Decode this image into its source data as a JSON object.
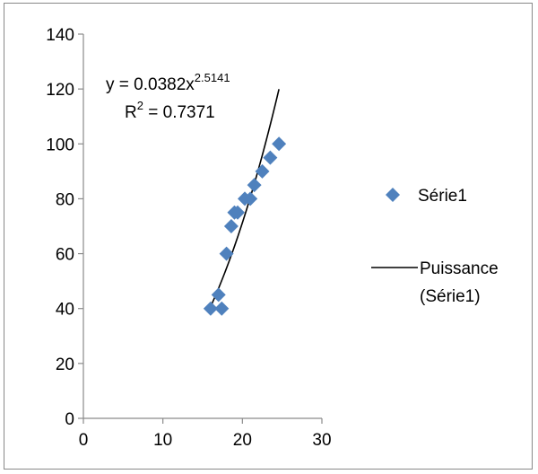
{
  "chart_data": {
    "type": "scatter",
    "title": "",
    "xlabel": "",
    "ylabel": "",
    "xlim": [
      0,
      30
    ],
    "ylim": [
      0,
      140
    ],
    "x_ticks": [
      "0",
      "10",
      "20",
      "30"
    ],
    "y_ticks": [
      "0",
      "20",
      "40",
      "60",
      "80",
      "100",
      "120",
      "140"
    ],
    "grid": false,
    "legend_position": "right",
    "series": [
      {
        "name": "Série1",
        "marker": "diamond",
        "color": "#4f81bd",
        "points": [
          {
            "x": 16.0,
            "y": 40
          },
          {
            "x": 17.4,
            "y": 40
          },
          {
            "x": 17.0,
            "y": 45
          },
          {
            "x": 18.0,
            "y": 60
          },
          {
            "x": 18.6,
            "y": 70
          },
          {
            "x": 19.0,
            "y": 75
          },
          {
            "x": 19.4,
            "y": 75
          },
          {
            "x": 20.3,
            "y": 80
          },
          {
            "x": 21.0,
            "y": 80
          },
          {
            "x": 21.5,
            "y": 85
          },
          {
            "x": 22.5,
            "y": 90
          },
          {
            "x": 23.5,
            "y": 95
          },
          {
            "x": 24.6,
            "y": 100
          }
        ]
      }
    ],
    "trendline": {
      "name": "Puissance (Série1)",
      "legend_lines": [
        "Puissance",
        "(Série1)"
      ],
      "type": "power",
      "coefficient": 0.0382,
      "exponent": 2.5141,
      "x_range": [
        16.0,
        24.6
      ],
      "color": "#000000",
      "equation_label": {
        "prefix": "y = 0.0382x",
        "exponent_text": "2.5141"
      },
      "r2_label": {
        "prefix": "R",
        "sup": "2",
        "suffix": " = 0.7371"
      }
    }
  }
}
